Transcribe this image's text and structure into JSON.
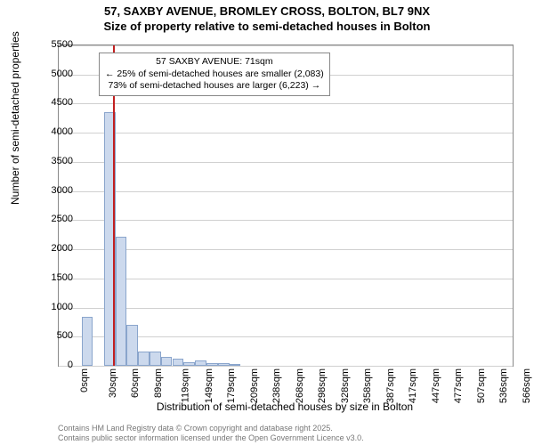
{
  "header": {
    "title": "57, SAXBY AVENUE, BROMLEY CROSS, BOLTON, BL7 9NX",
    "subtitle": "Size of property relative to semi-detached houses in Bolton"
  },
  "chart": {
    "type": "histogram",
    "ylabel": "Number of semi-detached properties",
    "xlabel": "Distribution of semi-detached houses by size in Bolton",
    "label_fontsize": 12,
    "ylim": [
      0,
      5500
    ],
    "ytick_step": 500,
    "yticks": [
      0,
      500,
      1000,
      1500,
      2000,
      2500,
      3000,
      3500,
      4000,
      4500,
      5000,
      5500
    ],
    "xticks": [
      "0sqm",
      "30sqm",
      "60sqm",
      "89sqm",
      "119sqm",
      "149sqm",
      "179sqm",
      "209sqm",
      "238sqm",
      "268sqm",
      "298sqm",
      "328sqm",
      "358sqm",
      "387sqm",
      "417sqm",
      "447sqm",
      "477sqm",
      "507sqm",
      "536sqm",
      "566sqm",
      "596sqm"
    ],
    "x_range": [
      0,
      596
    ],
    "bars": [
      {
        "x0": 15,
        "x1": 30,
        "value": 0
      },
      {
        "x0": 30,
        "x1": 45,
        "value": 840
      },
      {
        "x0": 45,
        "x1": 60,
        "value": 0
      },
      {
        "x0": 60,
        "x1": 75,
        "value": 4360
      },
      {
        "x0": 75,
        "x1": 89,
        "value": 2210
      },
      {
        "x0": 89,
        "x1": 104,
        "value": 700
      },
      {
        "x0": 104,
        "x1": 119,
        "value": 250
      },
      {
        "x0": 119,
        "x1": 134,
        "value": 250
      },
      {
        "x0": 134,
        "x1": 149,
        "value": 150
      },
      {
        "x0": 149,
        "x1": 164,
        "value": 120
      },
      {
        "x0": 164,
        "x1": 179,
        "value": 60
      },
      {
        "x0": 179,
        "x1": 194,
        "value": 90
      },
      {
        "x0": 194,
        "x1": 209,
        "value": 40
      },
      {
        "x0": 209,
        "x1": 224,
        "value": 40
      },
      {
        "x0": 224,
        "x1": 238,
        "value": 30
      }
    ],
    "bar_fill_color": "#ccd9ed",
    "bar_border_color": "#8aa5cc",
    "background_color": "#ffffff",
    "grid_color": "#d0d0d0",
    "marker": {
      "x": 71,
      "color": "#c22020",
      "width": 2
    },
    "annotation": {
      "line1": "57 SAXBY AVENUE: 71sqm",
      "line2": "← 25% of semi-detached houses are smaller (2,083)",
      "line3": "73% of semi-detached houses are larger (6,223) →",
      "box_border": "#888888",
      "box_bg": "#ffffff",
      "fontsize": 10.5
    }
  },
  "footer": {
    "line1": "Contains HM Land Registry data © Crown copyright and database right 2025.",
    "line2": "Contains public sector information licensed under the Open Government Licence v3.0."
  }
}
